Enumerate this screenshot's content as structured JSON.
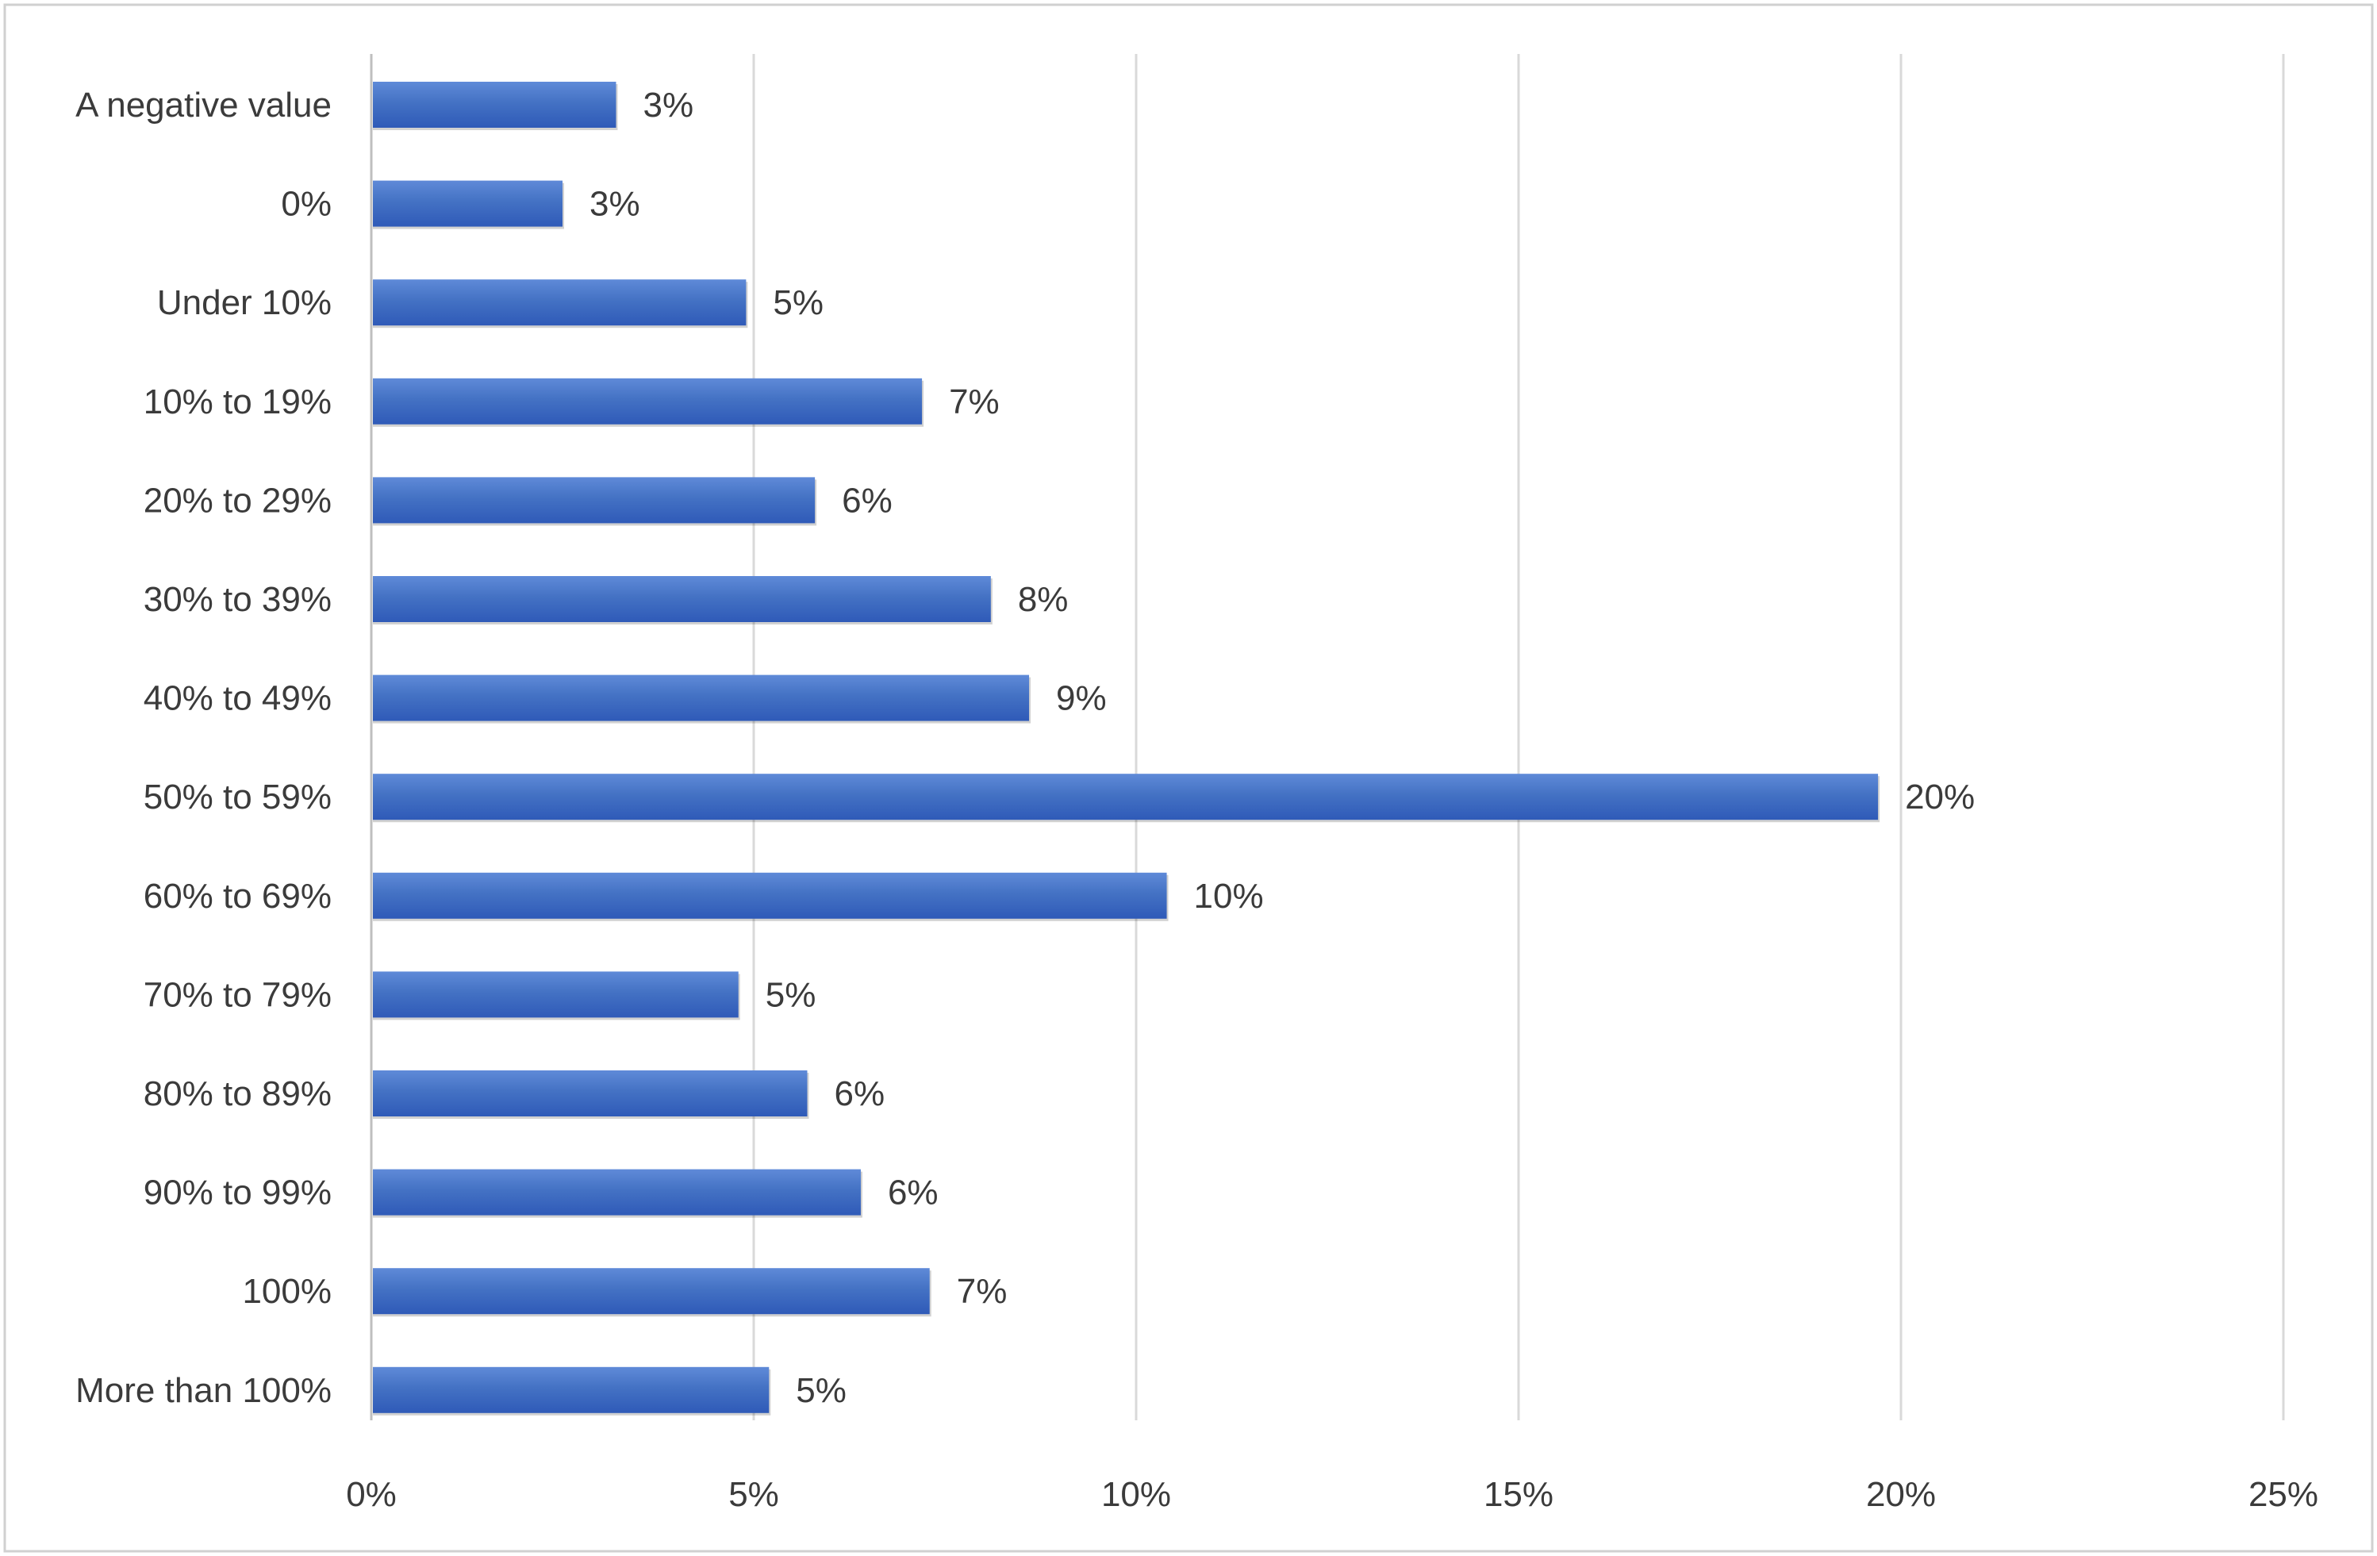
{
  "chart_data": {
    "type": "bar",
    "orientation": "horizontal",
    "categories": [
      "A negative value",
      "0%",
      "Under 10%",
      "10% to 19%",
      "20% to 29%",
      "30% to 39%",
      "40% to 49%",
      "50% to 59%",
      "60% to 69%",
      "70% to 79%",
      "80% to 89%",
      "90% to 99%",
      "100%",
      "More than 100%"
    ],
    "values": [
      3.2,
      2.5,
      4.9,
      7.2,
      5.8,
      8.1,
      8.6,
      19.7,
      10.4,
      4.8,
      5.7,
      6.4,
      7.3,
      5.2
    ],
    "data_labels": [
      "3%",
      "3%",
      "5%",
      "7%",
      "6%",
      "8%",
      "9%",
      "20%",
      "10%",
      "5%",
      "6%",
      "6%",
      "7%",
      "5%"
    ],
    "xlim": [
      0,
      25
    ],
    "x_ticks": [
      0,
      5,
      10,
      15,
      20,
      25
    ],
    "x_tick_labels": [
      "0%",
      "5%",
      "10%",
      "15%",
      "20%",
      "25%"
    ],
    "grid": "vertical",
    "legend": "none",
    "bar_color": "#4472c4",
    "bar_color_dark": "#2f5ab8",
    "bar_color_light": "#5f8ad8",
    "grid_color": "#d9d9d9",
    "axis_color": "#bfbfbf",
    "text_color": "#3b3b3b",
    "frame_color": "#d0d0d0"
  }
}
